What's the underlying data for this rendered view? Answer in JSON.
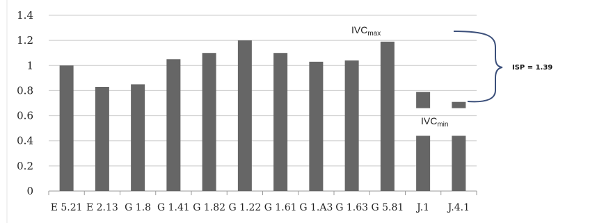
{
  "chart_data": {
    "type": "bar",
    "categories": [
      "E 5.21",
      "E 2.13",
      "G 1.8",
      "G 1.41",
      "G 1.82",
      "G 1.22",
      "G 1.61",
      "G 1.A3",
      "G 1.63",
      "G 5.81",
      "J.1",
      "J.4.1"
    ],
    "values": [
      1.0,
      0.83,
      0.85,
      1.05,
      1.1,
      1.2,
      1.1,
      1.03,
      1.04,
      1.19,
      0.44,
      0.44
    ],
    "extra_segments": [
      {
        "category": "J.1",
        "from": 0.66,
        "to": 0.79
      },
      {
        "category": "J.4.1",
        "from": 0.66,
        "to": 0.71
      }
    ],
    "ylim": [
      0,
      1.4
    ],
    "yticks": [
      "0",
      "0.2",
      "0.4",
      "0.6",
      "0.8",
      "1",
      "1.2",
      "1.4"
    ],
    "grid": true,
    "bar_color": "#666666",
    "annotations": {
      "ivc_max": {
        "main": "IVC",
        "sub": "max"
      },
      "ivc_min": {
        "main": "IVC",
        "sub": "min"
      },
      "isp": "ISP = 1.39"
    },
    "bracket_color": "#3b4f7a"
  }
}
